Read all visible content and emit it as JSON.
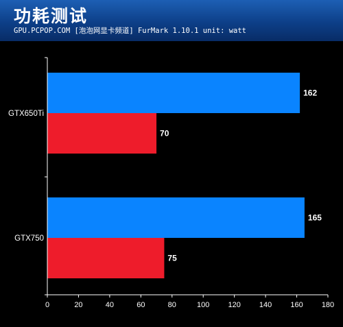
{
  "header": {
    "title": "功耗测试",
    "subtitle": "GPU.PCPOP.COM [泡泡网显卡频道]  FurMark 1.10.1 unit: watt"
  },
  "chart_data": {
    "type": "bar",
    "orientation": "horizontal",
    "title": "功耗测试",
    "subtitle": "GPU.PCPOP.COM [泡泡网显卡频道]  FurMark 1.10.1 unit: watt",
    "categories": [
      "GTX650Ti",
      "GTX750"
    ],
    "series": [
      {
        "values": [
          162,
          165
        ],
        "color": "#0a84ff"
      },
      {
        "values": [
          70,
          75
        ],
        "color": "#ee1c2b"
      }
    ],
    "xlim": [
      0,
      180
    ],
    "xticks": [
      "0",
      "20",
      "40",
      "60",
      "80",
      "100",
      "120",
      "140",
      "160",
      "180"
    ],
    "xlabel": "",
    "ylabel": "",
    "grid": false,
    "legend": "none"
  }
}
